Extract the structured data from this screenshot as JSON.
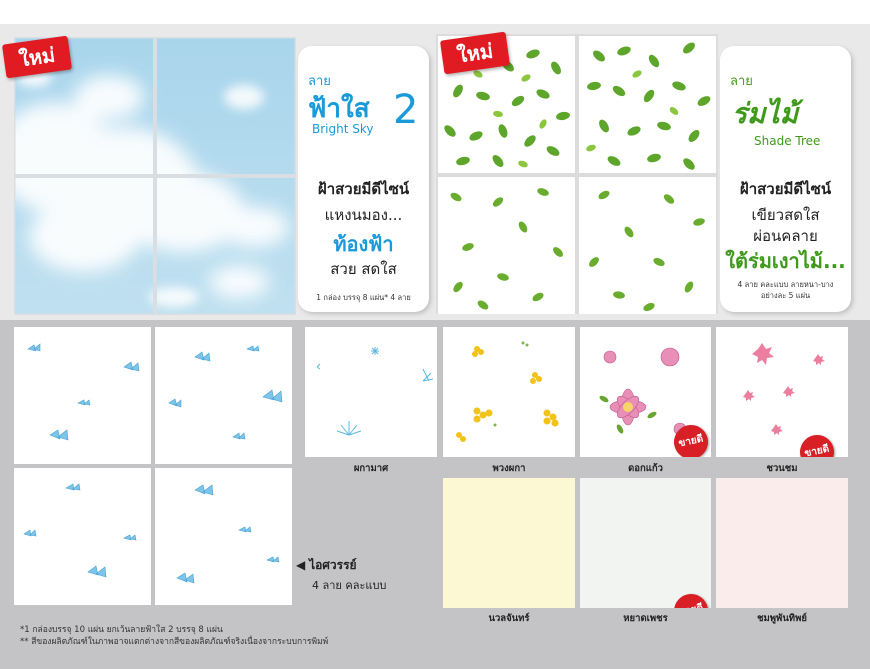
{
  "badges": {
    "new": "ใหม่",
    "best_seller": "ขายดี"
  },
  "sky_card": {
    "lai": "ลาย",
    "brand_th": "ฟ้าใส",
    "brand_num": "2",
    "brand_en": "Bright Sky",
    "line1": "ฝ้าสวยมีดีไซน์",
    "line2": "แหงนมอง...",
    "line3": "ท้องฟ้า",
    "line4": "สวย สดใส",
    "note": "1 กล่อง บรรจุ 8 แผ่น* 4 ลาย"
  },
  "tree_card": {
    "lai": "ลาย",
    "brand_th": "ร่มไม้",
    "brand_en": "Shade Tree",
    "line1": "ฝ้าสวยมีดีไซน์",
    "line2": "เขียวสดใส",
    "line3": "ผ่อนคลาย",
    "line4": "ใต้ร่มเงาไม้...",
    "note": "4 ลาย คละแบบ ลายหนา-บาง อย่างละ 5 แผ่น"
  },
  "patterns": [
    {
      "label": "ผกามาศ",
      "best": false
    },
    {
      "label": "พวงผกา",
      "best": false
    },
    {
      "label": "ดอกแก้ว",
      "best": true
    },
    {
      "label": "ชวนชม",
      "best": true
    }
  ],
  "solids": [
    {
      "label": "นวลจันทร์",
      "color": "#fdf8d4",
      "best": false
    },
    {
      "label": "หยาดเพชร",
      "color": "#f1f4f0",
      "best": true
    },
    {
      "label": "ชมพูพันทิพย์",
      "color": "#fbecec",
      "best": false
    }
  ],
  "icy": {
    "title": "ไอศวรรย์",
    "arrow": "◀",
    "sub": "4 ลาย คละแบบ"
  },
  "footnotes": [
    "*1 กล่องบรรจุ 10 แผ่น ยกเว้นลายฟ้าใส 2 บรรจุ 8 แผ่น",
    "** สีของผลิตภัณฑ์ในภาพอาจแตกต่างจากสีของผลิตภัณฑ์จริงเนื่องจากระบบการพิมพ์"
  ],
  "colors": {
    "red": "#e01b22",
    "sky_blue": "#1a9ad8",
    "leaf_green": "#59a22a",
    "butterfly": "#7cc4e8"
  },
  "icons": [
    "butterfly-icon",
    "leaf-icon",
    "flower-icon",
    "dandelion-icon",
    "arrow-left-icon"
  ]
}
